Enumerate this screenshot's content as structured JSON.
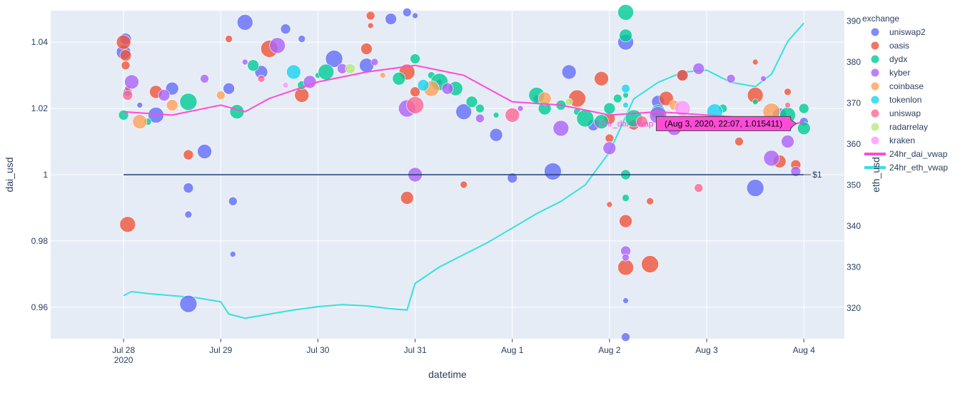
{
  "chart_data": {
    "type": "scatter",
    "xlabel": "datetime",
    "ylabel": "dai_usd",
    "y2label": "eth_usd",
    "x_range": [
      "2020-07-27 06:00",
      "2020-08-04 10:00"
    ],
    "ylim": [
      0.9505,
      1.0495
    ],
    "y2lim": [
      312.5,
      392.5
    ],
    "x_ticks": [
      "2020-07-28",
      "2020-07-29",
      "2020-07-30",
      "2020-07-31",
      "2020-08-01",
      "2020-08-02",
      "2020-08-03",
      "2020-08-04"
    ],
    "x_tick_labels": [
      "Jul 28",
      "Jul 29",
      "Jul 30",
      "Jul 31",
      "Aug 1",
      "Aug 2",
      "Aug 3",
      "Aug 4"
    ],
    "x_tick_year": "2020",
    "y_ticks": [
      0.96,
      0.98,
      1,
      1.02,
      1.04
    ],
    "y_tick_labels": [
      "0.96",
      "0.98",
      "1",
      "1.02",
      "1.04"
    ],
    "y2_ticks": [
      320,
      330,
      340,
      350,
      360,
      370,
      380,
      390
    ],
    "y2_tick_labels": [
      "320",
      "330",
      "340",
      "350",
      "360",
      "370",
      "380",
      "390"
    ],
    "grid": true,
    "legend_title": "exchange",
    "legend_position": "right",
    "legend": [
      {
        "name": "uniswap2",
        "color": "#636efa",
        "kind": "marker"
      },
      {
        "name": "oasis",
        "color": "#ef553b",
        "kind": "marker"
      },
      {
        "name": "dydx",
        "color": "#00cc96",
        "kind": "marker"
      },
      {
        "name": "kyber",
        "color": "#ab63fa",
        "kind": "marker"
      },
      {
        "name": "coinbase",
        "color": "#ffa15a",
        "kind": "marker"
      },
      {
        "name": "tokenlon",
        "color": "#19d3f3",
        "kind": "marker"
      },
      {
        "name": "uniswap",
        "color": "#ff6692",
        "kind": "marker"
      },
      {
        "name": "radarrelay",
        "color": "#b6e880",
        "kind": "marker"
      },
      {
        "name": "kraken",
        "color": "#ff97ff",
        "kind": "marker"
      },
      {
        "name": "24hr_dai_vwap",
        "color": "#ff4bd8",
        "kind": "line"
      },
      {
        "name": "24hr_eth_vwap",
        "color": "#37e0dc",
        "kind": "line"
      }
    ],
    "scatter_series": [
      {
        "name": "uniswap2",
        "color": "#636efa",
        "points": [
          [
            "2020-07-28 00:00",
            1.037
          ],
          [
            "2020-07-28 00:30",
            1.041
          ],
          [
            "2020-07-28 01:00",
            1.025
          ],
          [
            "2020-07-28 04:00",
            1.021
          ],
          [
            "2020-07-28 08:00",
            1.018
          ],
          [
            "2020-07-28 12:00",
            1.026
          ],
          [
            "2020-07-28 16:00",
            0.996
          ],
          [
            "2020-07-28 16:00",
            0.988
          ],
          [
            "2020-07-28 16:00",
            0.961
          ],
          [
            "2020-07-28 20:00",
            1.007
          ],
          [
            "2020-07-29 02:00",
            1.026
          ],
          [
            "2020-07-29 03:00",
            0.992
          ],
          [
            "2020-07-29 03:00",
            0.976
          ],
          [
            "2020-07-29 06:00",
            1.046
          ],
          [
            "2020-07-29 10:00",
            1.031
          ],
          [
            "2020-07-29 16:00",
            1.044
          ],
          [
            "2020-07-29 20:00",
            1.041
          ],
          [
            "2020-07-30 04:00",
            1.035
          ],
          [
            "2020-07-30 12:00",
            1.033
          ],
          [
            "2020-07-30 18:00",
            1.047
          ],
          [
            "2020-07-30 22:00",
            1.049
          ],
          [
            "2020-07-31 06:00",
            1.028
          ],
          [
            "2020-07-31 12:00",
            1.019
          ],
          [
            "2020-07-31 20:00",
            1.012
          ],
          [
            "2020-08-01 00:00",
            0.999
          ],
          [
            "2020-08-01 06:00",
            1.023
          ],
          [
            "2020-08-01 10:00",
            1.001
          ],
          [
            "2020-08-01 14:00",
            1.031
          ],
          [
            "2020-08-01 20:00",
            1.015
          ],
          [
            "2020-08-02 04:00",
            0.951
          ],
          [
            "2020-08-02 04:00",
            0.962
          ],
          [
            "2020-08-02 04:00",
            1.04
          ],
          [
            "2020-08-02 12:00",
            1.022
          ],
          [
            "2020-08-02 18:00",
            1.03
          ],
          [
            "2020-08-03 04:00",
            1.017
          ],
          [
            "2020-08-03 12:00",
            0.996
          ],
          [
            "2020-08-03 18:00",
            1.018
          ],
          [
            "2020-08-03 20:00",
            1.015
          ],
          [
            "2020-08-04 00:00",
            1.016
          ],
          [
            "2020-07-31 00:00",
            1.048
          ]
        ]
      },
      {
        "name": "oasis",
        "color": "#ef553b",
        "points": [
          [
            "2020-07-28 00:00",
            1.04
          ],
          [
            "2020-07-28 00:30",
            1.036
          ],
          [
            "2020-07-28 00:30",
            1.033
          ],
          [
            "2020-07-28 01:00",
            1.026
          ],
          [
            "2020-07-28 01:00",
            0.985
          ],
          [
            "2020-07-28 08:00",
            1.025
          ],
          [
            "2020-07-28 16:00",
            1.006
          ],
          [
            "2020-07-29 02:00",
            1.041
          ],
          [
            "2020-07-29 12:00",
            1.038
          ],
          [
            "2020-07-29 20:00",
            1.024
          ],
          [
            "2020-07-30 12:00",
            1.038
          ],
          [
            "2020-07-30 13:00",
            1.048
          ],
          [
            "2020-07-30 13:00",
            1.045
          ],
          [
            "2020-07-30 22:00",
            1.031
          ],
          [
            "2020-07-30 22:00",
            0.993
          ],
          [
            "2020-07-31 00:00",
            1.025
          ],
          [
            "2020-07-31 12:00",
            0.997
          ],
          [
            "2020-08-01 16:00",
            1.023
          ],
          [
            "2020-08-01 22:00",
            1.029
          ],
          [
            "2020-08-02 00:00",
            1.017
          ],
          [
            "2020-08-02 00:00",
            1.011
          ],
          [
            "2020-08-02 00:00",
            0.991
          ],
          [
            "2020-08-02 04:00",
            0.972
          ],
          [
            "2020-08-02 04:00",
            0.986
          ],
          [
            "2020-08-02 06:00",
            1.015
          ],
          [
            "2020-08-02 10:00",
            0.992
          ],
          [
            "2020-08-02 10:00",
            0.973
          ],
          [
            "2020-08-02 14:00",
            1.023
          ],
          [
            "2020-08-02 18:00",
            1.03
          ],
          [
            "2020-08-03 08:00",
            1.01
          ],
          [
            "2020-08-03 12:00",
            1.034
          ],
          [
            "2020-08-03 12:00",
            1.024
          ],
          [
            "2020-08-03 18:00",
            1.004
          ],
          [
            "2020-08-03 22:00",
            1.003
          ],
          [
            "2020-08-03 20:00",
            1.025
          ]
        ]
      },
      {
        "name": "dydx",
        "color": "#00cc96",
        "points": [
          [
            "2020-07-28 00:00",
            1.018
          ],
          [
            "2020-07-28 06:00",
            1.016
          ],
          [
            "2020-07-28 16:00",
            1.022
          ],
          [
            "2020-07-29 04:00",
            1.019
          ],
          [
            "2020-07-29 08:00",
            1.033
          ],
          [
            "2020-07-29 20:00",
            1.027
          ],
          [
            "2020-07-30 00:00",
            1.03
          ],
          [
            "2020-07-30 02:00",
            1.031
          ],
          [
            "2020-07-30 20:00",
            1.029
          ],
          [
            "2020-07-31 00:00",
            1.035
          ],
          [
            "2020-07-31 04:00",
            1.03
          ],
          [
            "2020-07-31 06:00",
            1.028
          ],
          [
            "2020-07-31 10:00",
            1.026
          ],
          [
            "2020-07-31 14:00",
            1.022
          ],
          [
            "2020-07-31 16:00",
            1.02
          ],
          [
            "2020-07-31 20:00",
            1.018
          ],
          [
            "2020-08-01 06:00",
            1.024
          ],
          [
            "2020-08-01 08:00",
            1.02
          ],
          [
            "2020-08-01 12:00",
            1.021
          ],
          [
            "2020-08-01 16:00",
            1.019
          ],
          [
            "2020-08-01 18:00",
            1.017
          ],
          [
            "2020-08-01 22:00",
            1.016
          ],
          [
            "2020-08-02 00:00",
            1.02
          ],
          [
            "2020-08-02 02:00",
            1.023
          ],
          [
            "2020-08-02 04:00",
            1.024
          ],
          [
            "2020-08-02 04:00",
            1.049
          ],
          [
            "2020-08-02 04:00",
            1.042
          ],
          [
            "2020-08-02 04:00",
            1.0
          ],
          [
            "2020-08-02 04:00",
            0.993
          ],
          [
            "2020-08-02 06:00",
            1.017
          ],
          [
            "2020-08-02 12:00",
            1.019
          ],
          [
            "2020-08-02 20:00",
            1.015
          ],
          [
            "2020-08-03 04:00",
            1.02
          ],
          [
            "2020-08-03 12:00",
            1.022
          ],
          [
            "2020-08-03 20:00",
            1.018
          ],
          [
            "2020-08-04 00:00",
            1.014
          ],
          [
            "2020-08-04 00:00",
            1.02
          ]
        ]
      },
      {
        "name": "kyber",
        "color": "#ab63fa",
        "points": [
          [
            "2020-07-28 02:00",
            1.028
          ],
          [
            "2020-07-28 10:00",
            1.024
          ],
          [
            "2020-07-28 20:00",
            1.029
          ],
          [
            "2020-07-29 06:00",
            1.034
          ],
          [
            "2020-07-29 14:00",
            1.039
          ],
          [
            "2020-07-29 22:00",
            1.028
          ],
          [
            "2020-07-30 06:00",
            1.032
          ],
          [
            "2020-07-30 14:00",
            1.034
          ],
          [
            "2020-07-30 22:00",
            1.02
          ],
          [
            "2020-07-31 00:00",
            1.0
          ],
          [
            "2020-07-31 08:00",
            1.026
          ],
          [
            "2020-07-31 16:00",
            1.017
          ],
          [
            "2020-08-01 02:00",
            1.02
          ],
          [
            "2020-08-01 12:00",
            1.014
          ],
          [
            "2020-08-02 00:00",
            1.008
          ],
          [
            "2020-08-02 04:00",
            0.977
          ],
          [
            "2020-08-02 04:00",
            0.975
          ],
          [
            "2020-08-02 12:00",
            1.018
          ],
          [
            "2020-08-02 16:00",
            1.014
          ],
          [
            "2020-08-02 22:00",
            1.032
          ],
          [
            "2020-08-03 06:00",
            1.029
          ],
          [
            "2020-08-03 14:00",
            1.029
          ],
          [
            "2020-08-03 16:00",
            1.005
          ],
          [
            "2020-08-03 20:00",
            1.01
          ],
          [
            "2020-08-03 22:00",
            1.001
          ]
        ]
      },
      {
        "name": "coinbase",
        "color": "#ffa15a",
        "points": [
          [
            "2020-07-28 04:00",
            1.016
          ],
          [
            "2020-07-28 12:00",
            1.021
          ],
          [
            "2020-07-29 00:00",
            1.024
          ],
          [
            "2020-07-30 16:00",
            1.03
          ],
          [
            "2020-07-31 04:00",
            1.026
          ],
          [
            "2020-08-01 08:00",
            1.023
          ],
          [
            "2020-08-02 16:00",
            1.021
          ],
          [
            "2020-08-03 04:00",
            1.017
          ],
          [
            "2020-08-03 16:00",
            1.019
          ]
        ]
      },
      {
        "name": "tokenlon",
        "color": "#19d3f3",
        "points": [
          [
            "2020-07-29 18:00",
            1.031
          ],
          [
            "2020-07-31 02:00",
            1.027
          ],
          [
            "2020-08-02 04:00",
            1.026
          ],
          [
            "2020-08-02 04:00",
            1.021
          ],
          [
            "2020-08-03 02:00",
            1.019
          ]
        ]
      },
      {
        "name": "uniswap",
        "color": "#ff6692",
        "points": [
          [
            "2020-07-28 01:00",
            1.024
          ],
          [
            "2020-07-29 10:00",
            1.029
          ],
          [
            "2020-07-31 00:00",
            1.021
          ],
          [
            "2020-08-01 00:00",
            1.018
          ],
          [
            "2020-08-02 08:00",
            1.016
          ],
          [
            "2020-08-02 22:00",
            0.996
          ],
          [
            "2020-08-03 20:00",
            1.021
          ]
        ]
      },
      {
        "name": "radarrelay",
        "color": "#b6e880",
        "points": [
          [
            "2020-07-30 08:00",
            1.032
          ],
          [
            "2020-08-01 14:00",
            1.022
          ]
        ]
      },
      {
        "name": "kraken",
        "color": "#ff97ff",
        "points": [
          [
            "2020-07-29 16:00",
            1.027
          ],
          [
            "2020-08-02 18:00",
            1.02
          ]
        ]
      }
    ],
    "dai_vwap": {
      "name": "24hr_dai_vwap",
      "color": "#ff4bd8",
      "x": [
        "2020-07-28 00:00",
        "2020-07-28 12:00",
        "2020-07-29 00:00",
        "2020-07-29 06:00",
        "2020-07-29 12:00",
        "2020-07-30 00:00",
        "2020-07-30 12:00",
        "2020-07-31 00:00",
        "2020-07-31 12:00",
        "2020-08-01 00:00",
        "2020-08-01 12:00",
        "2020-08-02 00:00",
        "2020-08-02 12:00",
        "2020-08-03 00:00",
        "2020-08-03 12:00",
        "2020-08-03 22:07",
        "2020-08-04 00:00"
      ],
      "y": [
        1.019,
        1.018,
        1.021,
        1.019,
        1.023,
        1.028,
        1.031,
        1.033,
        1.03,
        1.022,
        1.021,
        1.018,
        1.019,
        1.018,
        1.017,
        1.015411,
        1.016
      ]
    },
    "eth_vwap": {
      "name": "24hr_eth_vwap",
      "color": "#37e0dc",
      "x": [
        "2020-07-28 00:00",
        "2020-07-28 02:00",
        "2020-07-28 06:00",
        "2020-07-28 12:00",
        "2020-07-28 18:00",
        "2020-07-29 00:00",
        "2020-07-29 02:00",
        "2020-07-29 06:00",
        "2020-07-29 12:00",
        "2020-07-29 18:00",
        "2020-07-30 00:00",
        "2020-07-30 06:00",
        "2020-07-30 12:00",
        "2020-07-30 18:00",
        "2020-07-30 22:00",
        "2020-07-31 00:00",
        "2020-07-31 06:00",
        "2020-07-31 12:00",
        "2020-07-31 18:00",
        "2020-08-01 00:00",
        "2020-08-01 06:00",
        "2020-08-01 12:00",
        "2020-08-01 18:00",
        "2020-08-02 00:00",
        "2020-08-02 06:00",
        "2020-08-02 12:00",
        "2020-08-02 18:00",
        "2020-08-03 00:00",
        "2020-08-03 06:00",
        "2020-08-03 12:00",
        "2020-08-03 16:00",
        "2020-08-03 20:00",
        "2020-08-04 00:00"
      ],
      "y": [
        323,
        324,
        323.5,
        323,
        322.5,
        321.5,
        318.5,
        317.5,
        318.5,
        319.5,
        320.3,
        320.8,
        320.5,
        319.8,
        319.5,
        326,
        330,
        333,
        336,
        339.5,
        343,
        346,
        350,
        358,
        371,
        375,
        377.5,
        378,
        375,
        374,
        377,
        385,
        389.5
      ]
    },
    "reference_line": {
      "y": 1,
      "label": "$1",
      "color": "#1f3f73"
    },
    "hover_label": {
      "name": "24hr_dai_vwap",
      "text": "(Aug 3, 2020, 22:07, 1.015411)",
      "x": "2020-08-03 22:07",
      "y": 1.015411,
      "color": "#ff4bd8"
    }
  }
}
